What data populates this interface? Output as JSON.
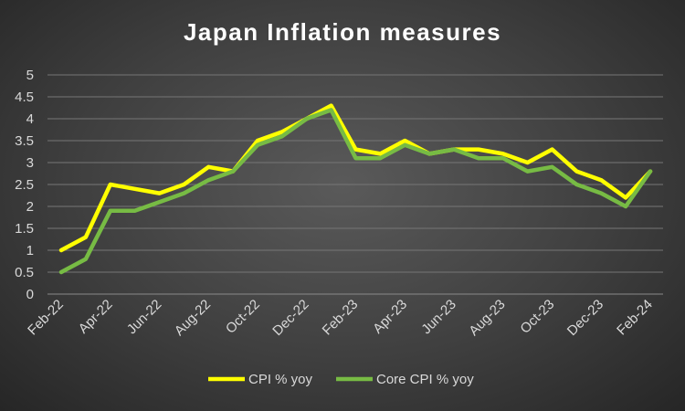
{
  "chart_data": {
    "type": "line",
    "title": "Japan Inflation measures",
    "xlabel": "",
    "ylabel": "",
    "ylim": [
      0,
      5
    ],
    "yticks": [
      "0",
      "0.5",
      "1",
      "1.5",
      "2",
      "2.5",
      "3",
      "3.5",
      "4",
      "4.5",
      "5"
    ],
    "categories": [
      "Feb-22",
      "Mar-22",
      "Apr-22",
      "May-22",
      "Jun-22",
      "Jul-22",
      "Aug-22",
      "Sep-22",
      "Oct-22",
      "Nov-22",
      "Dec-22",
      "Jan-23",
      "Feb-23",
      "Mar-23",
      "Apr-23",
      "May-23",
      "Jun-23",
      "Jul-23",
      "Aug-23",
      "Sep-23",
      "Oct-23",
      "Nov-23",
      "Dec-23",
      "Jan-24",
      "Feb-24"
    ],
    "xtick_labels": [
      "Feb-22",
      "",
      "Apr-22",
      "",
      "Jun-22",
      "",
      "Aug-22",
      "",
      "Oct-22",
      "",
      "Dec-22",
      "",
      "Feb-23",
      "",
      "Apr-23",
      "",
      "Jun-23",
      "",
      "Aug-23",
      "",
      "Oct-23",
      "",
      "Dec-23",
      "",
      "Feb-24"
    ],
    "series": [
      {
        "name": "CPI % yoy",
        "color": "#ffff00",
        "values": [
          1.0,
          1.3,
          2.5,
          2.4,
          2.3,
          2.5,
          2.9,
          2.8,
          3.5,
          3.7,
          4.0,
          4.3,
          3.3,
          3.2,
          3.5,
          3.2,
          3.3,
          3.3,
          3.2,
          3.0,
          3.3,
          2.8,
          2.6,
          2.2,
          2.8
        ]
      },
      {
        "name": "Core CPI % yoy",
        "color": "#77bb44",
        "values": [
          0.5,
          0.8,
          1.9,
          1.9,
          2.1,
          2.3,
          2.6,
          2.8,
          3.4,
          3.6,
          4.0,
          4.2,
          3.1,
          3.1,
          3.4,
          3.2,
          3.3,
          3.1,
          3.1,
          2.8,
          2.9,
          2.5,
          2.3,
          2.0,
          2.8
        ]
      }
    ],
    "grid": true,
    "legend": "bottom"
  }
}
